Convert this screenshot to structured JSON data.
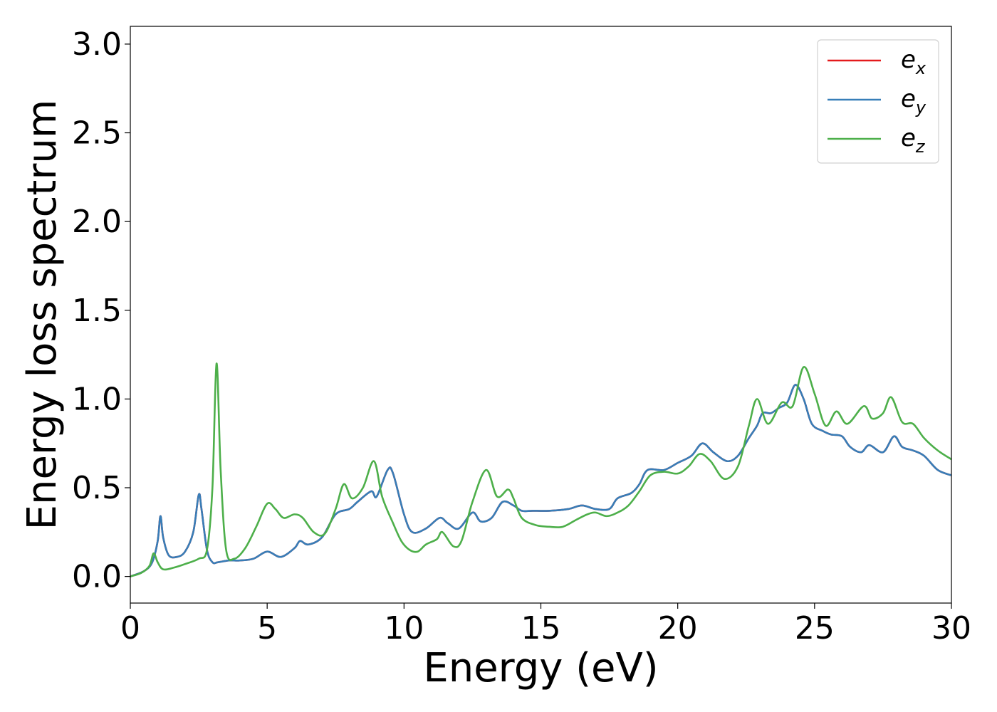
{
  "chart_data": {
    "type": "line",
    "title": "",
    "xlabel": "Energy (eV)",
    "ylabel": "Energy loss spectrum",
    "xlim": [
      0,
      30
    ],
    "ylim": [
      -0.15,
      3.1
    ],
    "xticks": [
      0,
      5,
      10,
      15,
      20,
      25,
      30
    ],
    "xtick_labels": [
      "0",
      "5",
      "10",
      "15",
      "20",
      "25",
      "30"
    ],
    "yticks": [
      0.0,
      0.5,
      1.0,
      1.5,
      2.0,
      2.5,
      3.0
    ],
    "ytick_labels": [
      "0.0",
      "0.5",
      "1.0",
      "1.5",
      "2.0",
      "2.5",
      "3.0"
    ],
    "grid": false,
    "legend": {
      "position": "top-right",
      "entries": [
        {
          "base": "e",
          "sub": "x",
          "color": "#e41a1c"
        },
        {
          "base": "e",
          "sub": "y",
          "color": "#377eb8"
        },
        {
          "base": "e",
          "sub": "z",
          "color": "#4daf4a"
        }
      ]
    },
    "series": [
      {
        "name": "e_x",
        "color": "#e41a1c",
        "points": [
          [
            0,
            0
          ],
          [
            0.5,
            0.03
          ],
          [
            0.8,
            0.08
          ],
          [
            1.0,
            0.2
          ],
          [
            1.1,
            0.34
          ],
          [
            1.2,
            0.22
          ],
          [
            1.4,
            0.12
          ],
          [
            1.7,
            0.11
          ],
          [
            2.0,
            0.14
          ],
          [
            2.3,
            0.25
          ],
          [
            2.5,
            0.46
          ],
          [
            2.6,
            0.38
          ],
          [
            2.8,
            0.15
          ],
          [
            3.0,
            0.08
          ],
          [
            3.2,
            0.08
          ],
          [
            3.6,
            0.09
          ],
          [
            4.0,
            0.09
          ],
          [
            4.5,
            0.1
          ],
          [
            5.0,
            0.14
          ],
          [
            5.5,
            0.11
          ],
          [
            6.0,
            0.16
          ],
          [
            6.2,
            0.2
          ],
          [
            6.5,
            0.18
          ],
          [
            7.0,
            0.22
          ],
          [
            7.5,
            0.35
          ],
          [
            8.0,
            0.38
          ],
          [
            8.3,
            0.42
          ],
          [
            8.8,
            0.48
          ],
          [
            9.0,
            0.45
          ],
          [
            9.4,
            0.6
          ],
          [
            9.6,
            0.58
          ],
          [
            10.0,
            0.35
          ],
          [
            10.3,
            0.25
          ],
          [
            10.8,
            0.27
          ],
          [
            11.3,
            0.33
          ],
          [
            11.6,
            0.3
          ],
          [
            12.0,
            0.27
          ],
          [
            12.5,
            0.36
          ],
          [
            12.8,
            0.31
          ],
          [
            13.2,
            0.33
          ],
          [
            13.6,
            0.42
          ],
          [
            14.0,
            0.4
          ],
          [
            14.3,
            0.37
          ],
          [
            14.7,
            0.37
          ],
          [
            15.3,
            0.37
          ],
          [
            16.0,
            0.38
          ],
          [
            16.5,
            0.4
          ],
          [
            17.0,
            0.38
          ],
          [
            17.5,
            0.38
          ],
          [
            17.8,
            0.44
          ],
          [
            18.3,
            0.47
          ],
          [
            18.6,
            0.52
          ],
          [
            18.9,
            0.6
          ],
          [
            19.5,
            0.6
          ],
          [
            20.0,
            0.64
          ],
          [
            20.5,
            0.68
          ],
          [
            20.9,
            0.75
          ],
          [
            21.3,
            0.7
          ],
          [
            21.8,
            0.65
          ],
          [
            22.2,
            0.68
          ],
          [
            22.6,
            0.78
          ],
          [
            22.9,
            0.85
          ],
          [
            23.1,
            0.92
          ],
          [
            23.4,
            0.92
          ],
          [
            23.7,
            0.95
          ],
          [
            24.0,
            0.98
          ],
          [
            24.3,
            1.08
          ],
          [
            24.6,
            1.0
          ],
          [
            24.9,
            0.86
          ],
          [
            25.3,
            0.82
          ],
          [
            25.6,
            0.8
          ],
          [
            26.0,
            0.79
          ],
          [
            26.3,
            0.73
          ],
          [
            26.7,
            0.7
          ],
          [
            27.0,
            0.74
          ],
          [
            27.5,
            0.7
          ],
          [
            27.9,
            0.79
          ],
          [
            28.2,
            0.73
          ],
          [
            28.6,
            0.71
          ],
          [
            29.0,
            0.68
          ],
          [
            29.5,
            0.6
          ],
          [
            30.0,
            0.57
          ]
        ]
      },
      {
        "name": "e_y",
        "color": "#377eb8",
        "points": [
          [
            0,
            0
          ],
          [
            0.5,
            0.03
          ],
          [
            0.8,
            0.08
          ],
          [
            1.0,
            0.2
          ],
          [
            1.1,
            0.34
          ],
          [
            1.2,
            0.22
          ],
          [
            1.4,
            0.12
          ],
          [
            1.7,
            0.11
          ],
          [
            2.0,
            0.14
          ],
          [
            2.3,
            0.25
          ],
          [
            2.5,
            0.46
          ],
          [
            2.6,
            0.38
          ],
          [
            2.8,
            0.15
          ],
          [
            3.0,
            0.08
          ],
          [
            3.2,
            0.08
          ],
          [
            3.6,
            0.09
          ],
          [
            4.0,
            0.09
          ],
          [
            4.5,
            0.1
          ],
          [
            5.0,
            0.14
          ],
          [
            5.5,
            0.11
          ],
          [
            6.0,
            0.16
          ],
          [
            6.2,
            0.2
          ],
          [
            6.5,
            0.18
          ],
          [
            7.0,
            0.22
          ],
          [
            7.5,
            0.35
          ],
          [
            8.0,
            0.38
          ],
          [
            8.3,
            0.42
          ],
          [
            8.8,
            0.48
          ],
          [
            9.0,
            0.45
          ],
          [
            9.4,
            0.6
          ],
          [
            9.6,
            0.58
          ],
          [
            10.0,
            0.35
          ],
          [
            10.3,
            0.25
          ],
          [
            10.8,
            0.27
          ],
          [
            11.3,
            0.33
          ],
          [
            11.6,
            0.3
          ],
          [
            12.0,
            0.27
          ],
          [
            12.5,
            0.36
          ],
          [
            12.8,
            0.31
          ],
          [
            13.2,
            0.33
          ],
          [
            13.6,
            0.42
          ],
          [
            14.0,
            0.4
          ],
          [
            14.3,
            0.37
          ],
          [
            14.7,
            0.37
          ],
          [
            15.3,
            0.37
          ],
          [
            16.0,
            0.38
          ],
          [
            16.5,
            0.4
          ],
          [
            17.0,
            0.38
          ],
          [
            17.5,
            0.38
          ],
          [
            17.8,
            0.44
          ],
          [
            18.3,
            0.47
          ],
          [
            18.6,
            0.52
          ],
          [
            18.9,
            0.6
          ],
          [
            19.5,
            0.6
          ],
          [
            20.0,
            0.64
          ],
          [
            20.5,
            0.68
          ],
          [
            20.9,
            0.75
          ],
          [
            21.3,
            0.7
          ],
          [
            21.8,
            0.65
          ],
          [
            22.2,
            0.68
          ],
          [
            22.6,
            0.78
          ],
          [
            22.9,
            0.85
          ],
          [
            23.1,
            0.92
          ],
          [
            23.4,
            0.92
          ],
          [
            23.7,
            0.95
          ],
          [
            24.0,
            0.98
          ],
          [
            24.3,
            1.08
          ],
          [
            24.6,
            1.0
          ],
          [
            24.9,
            0.86
          ],
          [
            25.3,
            0.82
          ],
          [
            25.6,
            0.8
          ],
          [
            26.0,
            0.79
          ],
          [
            26.3,
            0.73
          ],
          [
            26.7,
            0.7
          ],
          [
            27.0,
            0.74
          ],
          [
            27.5,
            0.7
          ],
          [
            27.9,
            0.79
          ],
          [
            28.2,
            0.73
          ],
          [
            28.6,
            0.71
          ],
          [
            29.0,
            0.68
          ],
          [
            29.5,
            0.6
          ],
          [
            30.0,
            0.57
          ]
        ]
      },
      {
        "name": "e_z",
        "color": "#4daf4a",
        "points": [
          [
            0,
            0
          ],
          [
            0.4,
            0.02
          ],
          [
            0.7,
            0.06
          ],
          [
            0.85,
            0.13
          ],
          [
            1.0,
            0.08
          ],
          [
            1.2,
            0.04
          ],
          [
            1.6,
            0.05
          ],
          [
            2.0,
            0.07
          ],
          [
            2.5,
            0.1
          ],
          [
            2.8,
            0.15
          ],
          [
            3.0,
            0.5
          ],
          [
            3.15,
            1.2
          ],
          [
            3.3,
            0.6
          ],
          [
            3.5,
            0.15
          ],
          [
            3.8,
            0.1
          ],
          [
            4.2,
            0.16
          ],
          [
            4.6,
            0.28
          ],
          [
            5.0,
            0.41
          ],
          [
            5.3,
            0.38
          ],
          [
            5.6,
            0.33
          ],
          [
            6.0,
            0.35
          ],
          [
            6.3,
            0.33
          ],
          [
            6.7,
            0.25
          ],
          [
            7.1,
            0.24
          ],
          [
            7.5,
            0.38
          ],
          [
            7.8,
            0.52
          ],
          [
            8.1,
            0.44
          ],
          [
            8.5,
            0.5
          ],
          [
            8.9,
            0.65
          ],
          [
            9.2,
            0.45
          ],
          [
            9.6,
            0.3
          ],
          [
            9.9,
            0.2
          ],
          [
            10.2,
            0.15
          ],
          [
            10.5,
            0.14
          ],
          [
            10.8,
            0.18
          ],
          [
            11.2,
            0.21
          ],
          [
            11.4,
            0.25
          ],
          [
            11.8,
            0.17
          ],
          [
            12.1,
            0.2
          ],
          [
            12.5,
            0.42
          ],
          [
            13.0,
            0.6
          ],
          [
            13.4,
            0.45
          ],
          [
            13.8,
            0.49
          ],
          [
            14.0,
            0.44
          ],
          [
            14.3,
            0.33
          ],
          [
            14.8,
            0.29
          ],
          [
            15.3,
            0.28
          ],
          [
            15.8,
            0.28
          ],
          [
            16.3,
            0.32
          ],
          [
            16.7,
            0.35
          ],
          [
            17.0,
            0.36
          ],
          [
            17.4,
            0.34
          ],
          [
            17.8,
            0.36
          ],
          [
            18.2,
            0.4
          ],
          [
            18.6,
            0.48
          ],
          [
            19.0,
            0.57
          ],
          [
            19.5,
            0.59
          ],
          [
            20.0,
            0.58
          ],
          [
            20.4,
            0.62
          ],
          [
            20.8,
            0.69
          ],
          [
            21.2,
            0.65
          ],
          [
            21.7,
            0.55
          ],
          [
            22.2,
            0.62
          ],
          [
            22.6,
            0.85
          ],
          [
            22.9,
            1.0
          ],
          [
            23.3,
            0.86
          ],
          [
            23.8,
            0.98
          ],
          [
            24.2,
            0.96
          ],
          [
            24.6,
            1.18
          ],
          [
            25.0,
            1.03
          ],
          [
            25.4,
            0.85
          ],
          [
            25.8,
            0.93
          ],
          [
            26.2,
            0.86
          ],
          [
            26.8,
            0.96
          ],
          [
            27.1,
            0.89
          ],
          [
            27.5,
            0.92
          ],
          [
            27.8,
            1.01
          ],
          [
            28.2,
            0.87
          ],
          [
            28.6,
            0.86
          ],
          [
            29.0,
            0.78
          ],
          [
            29.5,
            0.71
          ],
          [
            30.0,
            0.66
          ]
        ]
      }
    ]
  }
}
